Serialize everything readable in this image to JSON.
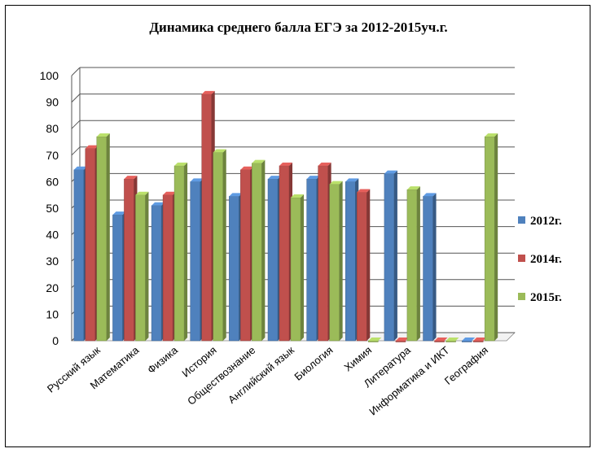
{
  "chart_data": {
    "type": "bar",
    "title": "Динамика среднего балла ЕГЭ за 2012-2015уч.г.",
    "xlabel": "",
    "ylabel": "",
    "ylim": [
      0,
      100
    ],
    "yticks": [
      0,
      10,
      20,
      30,
      40,
      50,
      60,
      70,
      80,
      90,
      100
    ],
    "grid": true,
    "legend_position": "right",
    "categories": [
      "Русский язык",
      "Математика",
      "Физика",
      "История",
      "Обществознание",
      "Английский язык",
      "Биология",
      "Химия",
      "Литература",
      "Информатика и ИКТ",
      "География"
    ],
    "series": [
      {
        "name": "2012г.",
        "color": "#4F81BD",
        "values": [
          64.5,
          47.5,
          51,
          60,
          54.5,
          61,
          61,
          60,
          63,
          54.5,
          0
        ]
      },
      {
        "name": "2014г.",
        "color": "#C0504D",
        "values": [
          72.5,
          61,
          55,
          93,
          64.5,
          66,
          66,
          56,
          0,
          0,
          0
        ]
      },
      {
        "name": "2015г.",
        "color": "#9BBB59",
        "values": [
          77,
          55,
          66,
          71,
          67,
          54,
          59,
          0,
          57,
          0,
          77
        ]
      }
    ]
  }
}
